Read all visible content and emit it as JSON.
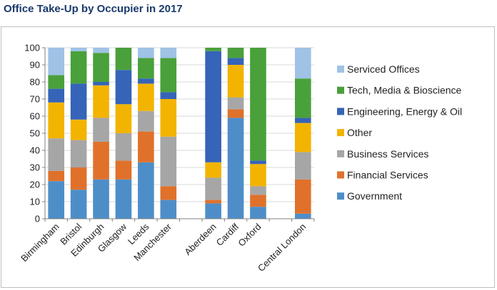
{
  "chart_data": {
    "type": "bar",
    "stacked": true,
    "percent_stacked": true,
    "title": "Office Take-Up by Occupier in 2017",
    "xlabel": "",
    "ylabel": "",
    "ylim": [
      0,
      100
    ],
    "yticks": [
      0,
      10,
      20,
      30,
      40,
      50,
      60,
      70,
      80,
      90,
      100
    ],
    "categories": [
      "Birmingham",
      "Bristol",
      "Edinburgh",
      "Glasgow",
      "Leeds",
      "Manchester",
      "",
      "Aberdeen",
      "Cardiff",
      "Oxford",
      "",
      "Central London"
    ],
    "series": [
      {
        "name": "Government",
        "color": "#4e8ec8",
        "values": [
          22,
          17,
          23,
          23,
          33,
          11,
          null,
          9,
          59,
          7,
          null,
          3
        ]
      },
      {
        "name": "Financial Services",
        "color": "#e0712b",
        "values": [
          6,
          13,
          22,
          11,
          18,
          8,
          null,
          2,
          5,
          7,
          null,
          20
        ]
      },
      {
        "name": "Business Services",
        "color": "#a6a6a6",
        "values": [
          19,
          16,
          14,
          16,
          12,
          29,
          null,
          13,
          7,
          5,
          null,
          16
        ]
      },
      {
        "name": "Other",
        "color": "#f2b400",
        "values": [
          21,
          12,
          19,
          17,
          16,
          22,
          null,
          9,
          19,
          13,
          null,
          17
        ]
      },
      {
        "name": "Engineering, Energy & Oil",
        "color": "#3564b8",
        "values": [
          8,
          21,
          2,
          20,
          3,
          4,
          null,
          65,
          4,
          2,
          null,
          3
        ]
      },
      {
        "name": "Tech, Media & Bioscience",
        "color": "#4aa03b",
        "values": [
          8,
          19,
          17,
          13,
          12,
          20,
          null,
          2,
          6,
          66,
          null,
          23
        ]
      },
      {
        "name": "Serviced Offices",
        "color": "#9fc2e5",
        "values": [
          16,
          2,
          3,
          0,
          6,
          6,
          null,
          0,
          0,
          0,
          null,
          18
        ]
      }
    ],
    "legend_position": "right",
    "legend_order": [
      "Serviced Offices",
      "Tech, Media & Bioscience",
      "Engineering, Energy & Oil",
      "Other",
      "Business Services",
      "Financial Services",
      "Government"
    ]
  }
}
